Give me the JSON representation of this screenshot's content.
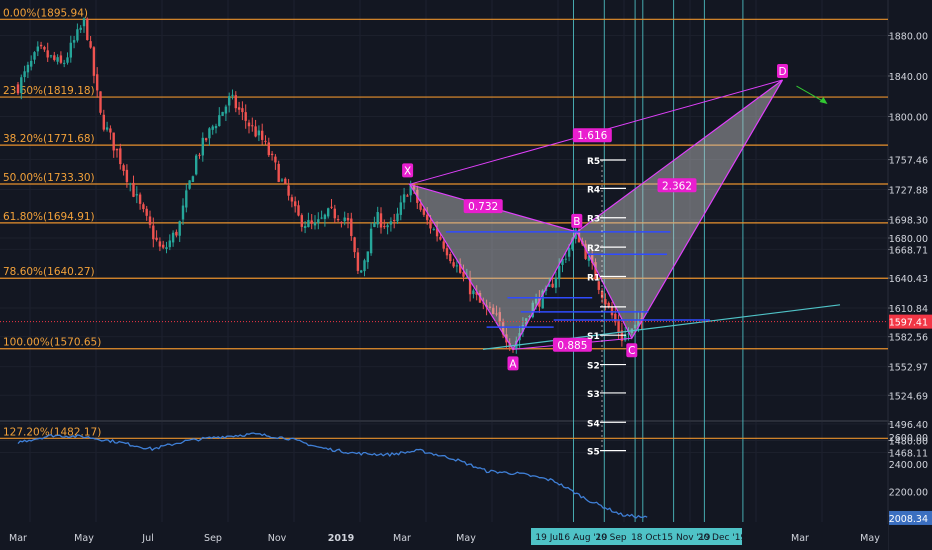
{
  "chart_data": {
    "type": "candlestick",
    "instrument_note": "",
    "x_axis": {
      "labels": [
        "Mar",
        "May",
        "Jul",
        "Sep",
        "Nov",
        "2019",
        "Mar",
        "May",
        "Jul",
        "Sep",
        "Oct",
        "Dec",
        "Mar",
        "May"
      ],
      "highlighted_dates": [
        "19 Jul",
        "16 Aug '19",
        "20 Sep",
        "18 Oct",
        "15 Nov '19",
        "20 Dec '19"
      ]
    },
    "price_axis": {
      "ticks": [
        1880.0,
        1840.0,
        1800.0,
        1757.46,
        1727.88,
        1698.3,
        1680.0,
        1668.71,
        1640.43,
        1610.84,
        1582.56,
        1552.97,
        1524.69,
        1496.4,
        1480.0,
        1468.11
      ],
      "current_price": "1597.41",
      "ylim": [
        1440,
        1910
      ]
    },
    "fib_levels": [
      {
        "label": "0.00%(1895.94)",
        "value": 1895.94
      },
      {
        "label": "23.60%(1819.18)",
        "value": 1819.18
      },
      {
        "label": "38.20%(1771.68)",
        "value": 1771.68
      },
      {
        "label": "50.00%(1733.30)",
        "value": 1733.3
      },
      {
        "label": "61.80%(1694.91)",
        "value": 1694.91
      },
      {
        "label": "78.60%(1640.27)",
        "value": 1640.27
      },
      {
        "label": "100.00%(1570.65)",
        "value": 1570.65
      },
      {
        "label": "127.20%(1482.17)",
        "value": 1482.17
      }
    ],
    "harmonic_pattern": {
      "points": [
        {
          "label": "X",
          "date": "2019-02-20",
          "price": 1733
        },
        {
          "label": "A",
          "date": "2019-05-25",
          "price": 1570
        },
        {
          "label": "B",
          "date": "2019-07-22",
          "price": 1686
        },
        {
          "label": "C",
          "date": "2019-09-10",
          "price": 1581
        },
        {
          "label": "D",
          "date": "2020-01-25",
          "price": 1836
        }
      ],
      "ratios": [
        "0.732",
        "0.885",
        "1.616",
        "2.362"
      ]
    },
    "pivot_levels": [
      {
        "label": "R5",
        "value": 1757
      },
      {
        "label": "R4",
        "value": 1729
      },
      {
        "label": "R3",
        "value": 1700
      },
      {
        "label": "R2",
        "value": 1671
      },
      {
        "label": "R1",
        "value": 1642
      },
      {
        "label": "P",
        "value": 1612
      },
      {
        "label": "S1",
        "value": 1584
      },
      {
        "label": "S2",
        "value": 1555
      },
      {
        "label": "S3",
        "value": 1527
      },
      {
        "label": "S4",
        "value": 1498
      },
      {
        "label": "S5",
        "value": 1470
      }
    ],
    "indicator": {
      "ticks": [
        2600.0,
        2400.0,
        2200.0
      ],
      "current_value": "2008.34",
      "ylim": [
        1960,
        2740
      ]
    },
    "colors": {
      "background": "#131722",
      "fib": "#e8912c",
      "fib_label": "#f2a13a",
      "up": "#26a69a",
      "down": "#ef5350",
      "pattern": "#e040fb",
      "badge": "#e91ecf",
      "vline": "#4fc3c7",
      "hline": "#2f4bff",
      "indicator": "#3f7fd6",
      "current_price": "#f23645"
    }
  }
}
